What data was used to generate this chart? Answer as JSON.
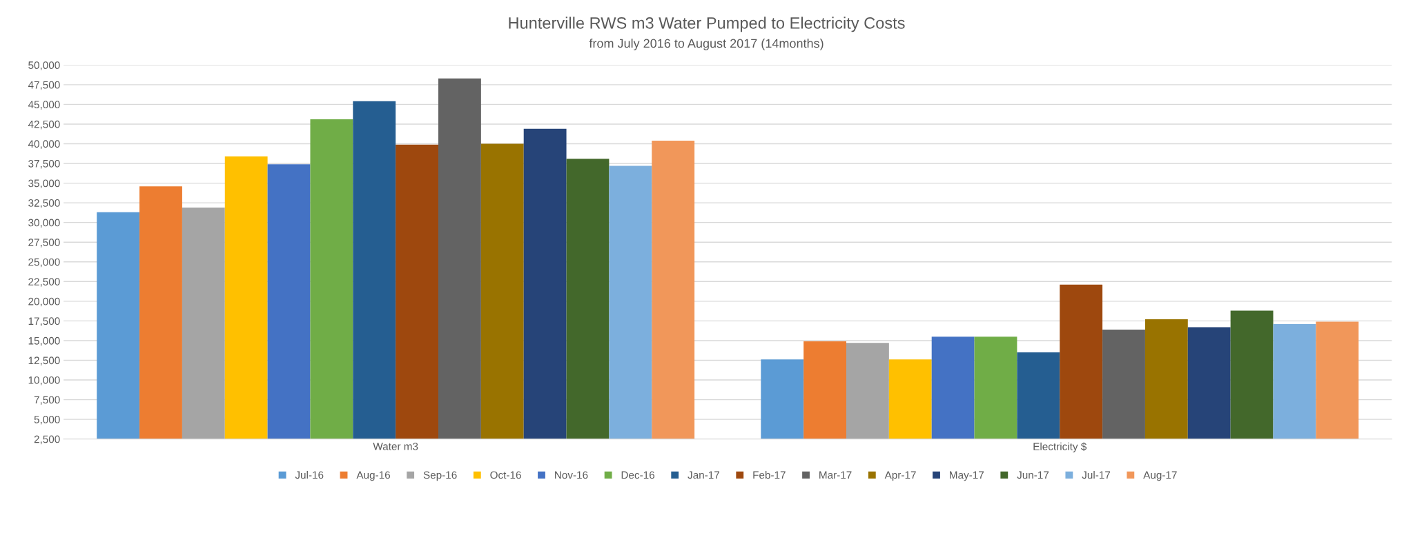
{
  "chart_data": {
    "type": "bar",
    "title": "Hunterville RWS m3 Water Pumped to Electricity Costs",
    "subtitle": "from July 2016 to August 2017 (14months)",
    "categories": [
      "Water m3",
      "Electricity $"
    ],
    "series": [
      {
        "name": "Jul-16",
        "color": "#5b9bd5",
        "values": [
          31300,
          12600
        ]
      },
      {
        "name": "Aug-16",
        "color": "#ed7d31",
        "values": [
          34600,
          14900
        ]
      },
      {
        "name": "Sep-16",
        "color": "#a5a5a5",
        "values": [
          31900,
          14700
        ]
      },
      {
        "name": "Oct-16",
        "color": "#ffc000",
        "values": [
          38400,
          12600
        ]
      },
      {
        "name": "Nov-16",
        "color": "#4472c4",
        "values": [
          37400,
          15500
        ]
      },
      {
        "name": "Dec-16",
        "color": "#70ad47",
        "values": [
          43100,
          15500
        ]
      },
      {
        "name": "Jan-17",
        "color": "#255e91",
        "values": [
          45400,
          13500
        ]
      },
      {
        "name": "Feb-17",
        "color": "#9e480e",
        "values": [
          39900,
          22100
        ]
      },
      {
        "name": "Mar-17",
        "color": "#636363",
        "values": [
          48300,
          16400
        ]
      },
      {
        "name": "Apr-17",
        "color": "#997300",
        "values": [
          40000,
          17700
        ]
      },
      {
        "name": "May-17",
        "color": "#264478",
        "values": [
          41900,
          16700
        ]
      },
      {
        "name": "Jun-17",
        "color": "#43682b",
        "values": [
          38100,
          18800
        ]
      },
      {
        "name": "Jul-17",
        "color": "#7cafdd",
        "values": [
          37200,
          17100
        ]
      },
      {
        "name": "Aug-17",
        "color": "#f1975a",
        "values": [
          40400,
          17400
        ]
      }
    ],
    "ylim": [
      2500,
      50000
    ],
    "yticks": [
      {
        "value": 2500,
        "label": "2,500"
      },
      {
        "value": 5000,
        "label": "5,000"
      },
      {
        "value": 7500,
        "label": "7,500"
      },
      {
        "value": 10000,
        "label": "10,000"
      },
      {
        "value": 12500,
        "label": "12,500"
      },
      {
        "value": 15000,
        "label": "15,000"
      },
      {
        "value": 17500,
        "label": "17,500"
      },
      {
        "value": 20000,
        "label": "20,000"
      },
      {
        "value": 22500,
        "label": "22,500"
      },
      {
        "value": 25000,
        "label": "25,000"
      },
      {
        "value": 27500,
        "label": "27,500"
      },
      {
        "value": 30000,
        "label": "30,000"
      },
      {
        "value": 32500,
        "label": "32,500"
      },
      {
        "value": 35000,
        "label": "35,000"
      },
      {
        "value": 37500,
        "label": "37,500"
      },
      {
        "value": 40000,
        "label": "40,000"
      },
      {
        "value": 42500,
        "label": "42,500"
      },
      {
        "value": 45000,
        "label": "45,000"
      },
      {
        "value": 47500,
        "label": "47,500"
      },
      {
        "value": 50000,
        "label": "50,000"
      }
    ],
    "grid": "y",
    "legend": "bottom"
  }
}
